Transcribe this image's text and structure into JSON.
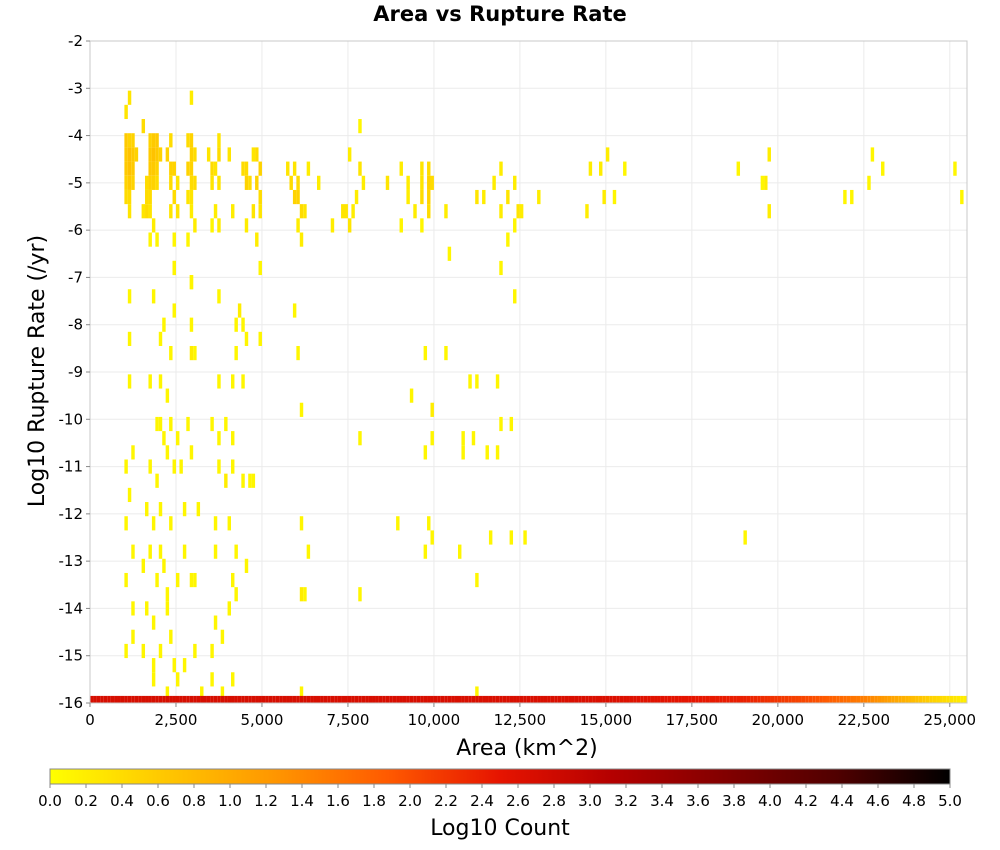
{
  "chart_data": {
    "type": "heatmap",
    "title": "Area vs Rupture Rate",
    "xlabel": "Area (km^2)",
    "ylabel": "Log10 Rupture Rate (/yr)",
    "xlim": [
      0,
      25500
    ],
    "ylim": [
      -16,
      -2
    ],
    "x_ticks": [
      0,
      2500,
      5000,
      7500,
      10000,
      12500,
      15000,
      17500,
      20000,
      22500,
      25000
    ],
    "x_tick_labels": [
      "0",
      "2,500",
      "5,000",
      "7,500",
      "10,000",
      "12,500",
      "15,000",
      "17,500",
      "20,000",
      "22,500",
      "25,000"
    ],
    "y_ticks": [
      -2,
      -3,
      -4,
      -5,
      -6,
      -7,
      -8,
      -9,
      -10,
      -11,
      -12,
      -13,
      -14,
      -15,
      -16
    ],
    "y_tick_labels": [
      "-2",
      "-3",
      "-4",
      "-5",
      "-6",
      "-7",
      "-8",
      "-9",
      "-10",
      "-11",
      "-12",
      "-13",
      "-14",
      "-15",
      "-16"
    ],
    "grid": true,
    "cell_width_km2": 100,
    "cell_height_log": 0.3,
    "colorbar": {
      "label": "Log10 Count",
      "range": [
        0.0,
        5.0
      ],
      "tick_labels": [
        "0.0",
        "0.2",
        "0.4",
        "0.6",
        "0.8",
        "1.0",
        "1.2",
        "1.4",
        "1.6",
        "1.8",
        "2.0",
        "2.2",
        "2.4",
        "2.6",
        "2.8",
        "3.0",
        "3.2",
        "3.4",
        "3.6",
        "3.8",
        "4.0",
        "4.2",
        "4.4",
        "4.6",
        "4.8",
        "5.0"
      ],
      "colors": [
        "#ffff00",
        "#ffc800",
        "#ff9600",
        "#ff5a00",
        "#e61400",
        "#b40000",
        "#820000",
        "#500000",
        "#000000"
      ],
      "placement": "bottom"
    },
    "bottom_row": {
      "y": -16,
      "x_start": 50,
      "x_end": 25450,
      "step": 100,
      "log_count_profile": [
        [
          0,
          2.7
        ],
        [
          5000,
          2.7
        ],
        [
          15000,
          2.65
        ],
        [
          19000,
          2.4
        ],
        [
          21000,
          2.0
        ],
        [
          22500,
          1.5
        ],
        [
          23500,
          1.0
        ],
        [
          24500,
          0.5
        ],
        [
          25400,
          0.2
        ]
      ]
    },
    "cells": [
      [
        1050,
        -3.5,
        0.3
      ],
      [
        1150,
        -3.2,
        0.3
      ],
      [
        1050,
        -4.1,
        0.6
      ],
      [
        1150,
        -4.1,
        0.5
      ],
      [
        1250,
        -4.1,
        0.5
      ],
      [
        1050,
        -4.4,
        0.6
      ],
      [
        1150,
        -4.4,
        0.7
      ],
      [
        1250,
        -4.4,
        0.6
      ],
      [
        1350,
        -4.4,
        0.5
      ],
      [
        1050,
        -4.7,
        0.6
      ],
      [
        1150,
        -4.7,
        0.7
      ],
      [
        1250,
        -4.7,
        0.6
      ],
      [
        1050,
        -5.0,
        0.5
      ],
      [
        1150,
        -5.0,
        0.6
      ],
      [
        1250,
        -5.0,
        0.5
      ],
      [
        1050,
        -5.3,
        0.4
      ],
      [
        1150,
        -5.3,
        0.4
      ],
      [
        1150,
        -5.6,
        0.3
      ],
      [
        1550,
        -3.8,
        0.4
      ],
      [
        1750,
        -4.1,
        0.5
      ],
      [
        1850,
        -4.1,
        0.6
      ],
      [
        1950,
        -4.1,
        0.6
      ],
      [
        1750,
        -4.4,
        0.6
      ],
      [
        1850,
        -4.4,
        0.7
      ],
      [
        1950,
        -4.4,
        0.6
      ],
      [
        2050,
        -4.4,
        0.5
      ],
      [
        1750,
        -4.7,
        0.6
      ],
      [
        1850,
        -4.7,
        0.6
      ],
      [
        1950,
        -4.7,
        0.5
      ],
      [
        1650,
        -5.0,
        0.4
      ],
      [
        1750,
        -5.0,
        0.5
      ],
      [
        1850,
        -5.0,
        0.5
      ],
      [
        1950,
        -5.0,
        0.4
      ],
      [
        1650,
        -5.3,
        0.4
      ],
      [
        1750,
        -5.3,
        0.4
      ],
      [
        1550,
        -5.6,
        0.3
      ],
      [
        1650,
        -5.6,
        0.4
      ],
      [
        1750,
        -5.6,
        0.3
      ],
      [
        1850,
        -5.9,
        0.2
      ],
      [
        1750,
        -6.2,
        0.1
      ],
      [
        1950,
        -6.2,
        0.1
      ],
      [
        2250,
        -4.4,
        0.5
      ],
      [
        2350,
        -4.1,
        0.4
      ],
      [
        2350,
        -4.7,
        0.5
      ],
      [
        2450,
        -4.7,
        0.5
      ],
      [
        2350,
        -5.0,
        0.4
      ],
      [
        2550,
        -5.0,
        0.3
      ],
      [
        2450,
        -5.3,
        0.4
      ],
      [
        2350,
        -5.6,
        0.3
      ],
      [
        2550,
        -5.6,
        0.3
      ],
      [
        2450,
        -6.2,
        0.1
      ],
      [
        2450,
        -6.8,
        0.2
      ],
      [
        2950,
        -3.2,
        0.2
      ],
      [
        2850,
        -4.1,
        0.4
      ],
      [
        2950,
        -4.1,
        0.5
      ],
      [
        2950,
        -4.4,
        0.5
      ],
      [
        3050,
        -4.4,
        0.4
      ],
      [
        2850,
        -4.7,
        0.5
      ],
      [
        2950,
        -4.7,
        0.5
      ],
      [
        2950,
        -5.0,
        0.4
      ],
      [
        3050,
        -5.0,
        0.4
      ],
      [
        2850,
        -5.3,
        0.3
      ],
      [
        2950,
        -5.3,
        0.3
      ],
      [
        2950,
        -5.6,
        0.2
      ],
      [
        3050,
        -5.9,
        0.2
      ],
      [
        2850,
        -6.2,
        0.1
      ],
      [
        2950,
        -7.1,
        0.1
      ],
      [
        3450,
        -4.4,
        0.3
      ],
      [
        3550,
        -4.7,
        0.4
      ],
      [
        3550,
        -5.0,
        0.3
      ],
      [
        3750,
        -4.1,
        0.3
      ],
      [
        3750,
        -4.4,
        0.4
      ],
      [
        3650,
        -4.7,
        0.3
      ],
      [
        3750,
        -5.0,
        0.3
      ],
      [
        3650,
        -5.6,
        0.2
      ],
      [
        3550,
        -5.9,
        0.1
      ],
      [
        3750,
        -5.9,
        0.2
      ],
      [
        4050,
        -4.4,
        0.3
      ],
      [
        4150,
        -5.6,
        0.2
      ],
      [
        4450,
        -4.7,
        0.4
      ],
      [
        4550,
        -4.7,
        0.4
      ],
      [
        4550,
        -5.0,
        0.5
      ],
      [
        4650,
        -5.0,
        0.4
      ],
      [
        4750,
        -4.4,
        0.3
      ],
      [
        4850,
        -4.4,
        0.4
      ],
      [
        4850,
        -5.0,
        0.5
      ],
      [
        4950,
        -4.7,
        0.5
      ],
      [
        4950,
        -5.3,
        0.4
      ],
      [
        4750,
        -5.6,
        0.3
      ],
      [
        4950,
        -5.6,
        0.3
      ],
      [
        4550,
        -5.9,
        0.2
      ],
      [
        4850,
        -6.2,
        0.2
      ],
      [
        4950,
        -6.8,
        0.1
      ],
      [
        5750,
        -4.7,
        0.3
      ],
      [
        5950,
        -4.7,
        0.3
      ],
      [
        5850,
        -5.0,
        0.4
      ],
      [
        6050,
        -5.0,
        0.4
      ],
      [
        5950,
        -5.3,
        0.5
      ],
      [
        6050,
        -5.3,
        0.5
      ],
      [
        6150,
        -5.6,
        0.4
      ],
      [
        6250,
        -5.6,
        0.3
      ],
      [
        6050,
        -5.9,
        0.2
      ],
      [
        6150,
        -6.2,
        0.2
      ],
      [
        6350,
        -4.7,
        0.2
      ],
      [
        6650,
        -5.0,
        0.2
      ],
      [
        7050,
        -5.9,
        0.2
      ],
      [
        7350,
        -5.6,
        0.3
      ],
      [
        7450,
        -5.6,
        0.3
      ],
      [
        7550,
        -5.9,
        0.3
      ],
      [
        7650,
        -5.6,
        0.2
      ],
      [
        7750,
        -5.3,
        0.2
      ],
      [
        7550,
        -4.4,
        0.2
      ],
      [
        7850,
        -4.7,
        0.3
      ],
      [
        7950,
        -5.0,
        0.2
      ],
      [
        7850,
        -3.8,
        0.1
      ],
      [
        8650,
        -5.0,
        0.3
      ],
      [
        9050,
        -4.7,
        0.2
      ],
      [
        9250,
        -5.0,
        0.2
      ],
      [
        9250,
        -5.3,
        0.2
      ],
      [
        9450,
        -5.6,
        0.2
      ],
      [
        9650,
        -4.7,
        0.3
      ],
      [
        9650,
        -5.0,
        0.3
      ],
      [
        9650,
        -5.3,
        0.4
      ],
      [
        9850,
        -4.7,
        0.4
      ],
      [
        9850,
        -5.0,
        0.5
      ],
      [
        9850,
        -5.3,
        0.5
      ],
      [
        9850,
        -5.6,
        0.4
      ],
      [
        9950,
        -5.0,
        0.4
      ],
      [
        10350,
        -5.6,
        0.2
      ],
      [
        11250,
        -5.3,
        0.3
      ],
      [
        11450,
        -5.3,
        0.2
      ],
      [
        11750,
        -5.0,
        0.2
      ],
      [
        11950,
        -4.7,
        0.2
      ],
      [
        11950,
        -5.6,
        0.2
      ],
      [
        12150,
        -5.3,
        0.3
      ],
      [
        12350,
        -5.0,
        0.2
      ],
      [
        12450,
        -5.6,
        0.3
      ],
      [
        12550,
        -5.6,
        0.2
      ],
      [
        12350,
        -5.9,
        0.1
      ],
      [
        13050,
        -5.3,
        0.2
      ],
      [
        14450,
        -5.6,
        0.2
      ],
      [
        14550,
        -4.7,
        0.2
      ],
      [
        14950,
        -5.3,
        0.2
      ],
      [
        14850,
        -4.7,
        0.2
      ],
      [
        15050,
        -4.4,
        0.2
      ],
      [
        15250,
        -5.3,
        0.1
      ],
      [
        15550,
        -4.7,
        0.1
      ],
      [
        18850,
        -4.7,
        0.1
      ],
      [
        19550,
        -5.0,
        0.1
      ],
      [
        19750,
        -4.4,
        0.2
      ],
      [
        19650,
        -5.0,
        0.2
      ],
      [
        19750,
        -5.6,
        0.2
      ],
      [
        21950,
        -5.3,
        0.1
      ],
      [
        22150,
        -5.3,
        0.1
      ],
      [
        22650,
        -5.0,
        0.1
      ],
      [
        22750,
        -4.4,
        0.1
      ],
      [
        23050,
        -4.7,
        0.1
      ],
      [
        25150,
        -4.7,
        0.1
      ],
      [
        25350,
        -5.3,
        0.1
      ],
      [
        9050,
        -5.9,
        0.1
      ],
      [
        9650,
        -5.9,
        0.1
      ],
      [
        10450,
        -6.5,
        0.1
      ],
      [
        11950,
        -6.8,
        0.1
      ],
      [
        12150,
        -6.2,
        0.1
      ],
      [
        12350,
        -7.4,
        0.1
      ],
      [
        1150,
        -7.4,
        0.1
      ],
      [
        1850,
        -7.4,
        0.1
      ],
      [
        2450,
        -6.8,
        0.1
      ],
      [
        2950,
        -7.1,
        0.1
      ],
      [
        3750,
        -7.4,
        0.1
      ],
      [
        1150,
        -8.3,
        0.1
      ],
      [
        2050,
        -8.3,
        0.1
      ],
      [
        2150,
        -8.0,
        0.1
      ],
      [
        2450,
        -7.7,
        0.1
      ],
      [
        2350,
        -8.6,
        0.1
      ],
      [
        2950,
        -8.0,
        0.1
      ],
      [
        2950,
        -8.6,
        0.2
      ],
      [
        3050,
        -8.6,
        0.1
      ],
      [
        4250,
        -8.0,
        0.1
      ],
      [
        4350,
        -7.7,
        0.2
      ],
      [
        4450,
        -8.0,
        0.1
      ],
      [
        4250,
        -8.6,
        0.1
      ],
      [
        4550,
        -8.3,
        0.1
      ],
      [
        4950,
        -8.3,
        0.1
      ],
      [
        5950,
        -7.7,
        0.1
      ],
      [
        6050,
        -8.6,
        0.1
      ],
      [
        9750,
        -8.6,
        0.1
      ],
      [
        10350,
        -8.6,
        0.1
      ],
      [
        1150,
        -9.2,
        0.1
      ],
      [
        1750,
        -9.2,
        0.1
      ],
      [
        2050,
        -9.2,
        0.1
      ],
      [
        2250,
        -9.5,
        0.1
      ],
      [
        3750,
        -9.2,
        0.1
      ],
      [
        4150,
        -9.2,
        0.1
      ],
      [
        4450,
        -9.2,
        0.1
      ],
      [
        6150,
        -9.8,
        0.1
      ],
      [
        9350,
        -9.5,
        0.1
      ],
      [
        9950,
        -9.8,
        0.2
      ],
      [
        11050,
        -9.2,
        0.1
      ],
      [
        11250,
        -9.2,
        0.1
      ],
      [
        11850,
        -9.2,
        0.1
      ],
      [
        1950,
        -10.1,
        0.1
      ],
      [
        2050,
        -10.1,
        0.1
      ],
      [
        2150,
        -10.4,
        0.1
      ],
      [
        2350,
        -10.1,
        0.1
      ],
      [
        2550,
        -10.4,
        0.1
      ],
      [
        2850,
        -10.1,
        0.1
      ],
      [
        3550,
        -10.1,
        0.1
      ],
      [
        3750,
        -10.4,
        0.1
      ],
      [
        3950,
        -10.1,
        0.1
      ],
      [
        4150,
        -10.4,
        0.1
      ],
      [
        7850,
        -10.4,
        0.1
      ],
      [
        9950,
        -10.4,
        0.1
      ],
      [
        10850,
        -10.4,
        0.1
      ],
      [
        11150,
        -10.4,
        0.1
      ],
      [
        11950,
        -10.1,
        0.1
      ],
      [
        12250,
        -10.1,
        0.1
      ],
      [
        1050,
        -11.0,
        0.1
      ],
      [
        1250,
        -10.7,
        0.1
      ],
      [
        1750,
        -11.0,
        0.1
      ],
      [
        1950,
        -11.3,
        0.1
      ],
      [
        2250,
        -10.7,
        0.1
      ],
      [
        2450,
        -11.0,
        0.1
      ],
      [
        2650,
        -11.0,
        0.1
      ],
      [
        2950,
        -10.7,
        0.1
      ],
      [
        3750,
        -11.0,
        0.1
      ],
      [
        3950,
        -11.3,
        0.2
      ],
      [
        4150,
        -11.0,
        0.1
      ],
      [
        4450,
        -11.3,
        0.1
      ],
      [
        4650,
        -11.3,
        0.1
      ],
      [
        4750,
        -11.3,
        0.1
      ],
      [
        9750,
        -10.7,
        0.1
      ],
      [
        10850,
        -10.7,
        0.1
      ],
      [
        11550,
        -10.7,
        0.1
      ],
      [
        11850,
        -10.7,
        0.1
      ],
      [
        11650,
        -12.5,
        0.1
      ],
      [
        12250,
        -12.5,
        0.1
      ],
      [
        12650,
        -12.5,
        0.1
      ],
      [
        19050,
        -12.5,
        0.1
      ],
      [
        1050,
        -12.2,
        0.1
      ],
      [
        1150,
        -11.6,
        0.1
      ],
      [
        1650,
        -11.9,
        0.1
      ],
      [
        1850,
        -12.2,
        0.1
      ],
      [
        2050,
        -11.9,
        0.1
      ],
      [
        2350,
        -12.2,
        0.1
      ],
      [
        2750,
        -11.9,
        0.1
      ],
      [
        3150,
        -11.9,
        0.1
      ],
      [
        3650,
        -12.2,
        0.1
      ],
      [
        4050,
        -12.2,
        0.1
      ],
      [
        1250,
        -12.8,
        0.1
      ],
      [
        1750,
        -12.8,
        0.1
      ],
      [
        2050,
        -12.8,
        0.1
      ],
      [
        2150,
        -13.1,
        0.1
      ],
      [
        2750,
        -12.8,
        0.1
      ],
      [
        3650,
        -12.8,
        0.1
      ],
      [
        4250,
        -12.8,
        0.1
      ],
      [
        6150,
        -12.2,
        0.1
      ],
      [
        6350,
        -12.8,
        0.1
      ],
      [
        8950,
        -12.2,
        0.1
      ],
      [
        9850,
        -12.2,
        0.1
      ],
      [
        9950,
        -12.5,
        0.1
      ],
      [
        9750,
        -12.8,
        0.1
      ],
      [
        10750,
        -12.8,
        0.1
      ],
      [
        1050,
        -13.4,
        0.1
      ],
      [
        1550,
        -13.1,
        0.1
      ],
      [
        1950,
        -13.4,
        0.1
      ],
      [
        2250,
        -13.7,
        0.1
      ],
      [
        2550,
        -13.4,
        0.1
      ],
      [
        2950,
        -13.4,
        0.1
      ],
      [
        3050,
        -13.4,
        0.1
      ],
      [
        4150,
        -13.4,
        0.1
      ],
      [
        4550,
        -13.1,
        0.1
      ],
      [
        6150,
        -13.7,
        0.2
      ],
      [
        6250,
        -13.7,
        0.1
      ],
      [
        7850,
        -13.7,
        0.1
      ],
      [
        11250,
        -13.4,
        0.1
      ],
      [
        1250,
        -14.0,
        0.1
      ],
      [
        1650,
        -14.0,
        0.1
      ],
      [
        1850,
        -14.3,
        0.1
      ],
      [
        2250,
        -14.0,
        0.1
      ],
      [
        3650,
        -14.3,
        0.1
      ],
      [
        4050,
        -14.0,
        0.1
      ],
      [
        4250,
        -13.7,
        0.1
      ],
      [
        1050,
        -14.9,
        0.1
      ],
      [
        1250,
        -14.6,
        0.1
      ],
      [
        1550,
        -14.9,
        0.1
      ],
      [
        1850,
        -15.2,
        0.1
      ],
      [
        2050,
        -14.9,
        0.1
      ],
      [
        2350,
        -14.6,
        0.1
      ],
      [
        2450,
        -15.2,
        0.1
      ],
      [
        2750,
        -15.2,
        0.1
      ],
      [
        3050,
        -14.9,
        0.1
      ],
      [
        3550,
        -14.9,
        0.1
      ],
      [
        3850,
        -14.6,
        0.1
      ],
      [
        1850,
        -15.5,
        0.1
      ],
      [
        2250,
        -15.8,
        0.1
      ],
      [
        2550,
        -15.5,
        0.1
      ],
      [
        3250,
        -15.8,
        0.1
      ],
      [
        3550,
        -15.5,
        0.1
      ],
      [
        3850,
        -15.8,
        0.1
      ],
      [
        4150,
        -15.5,
        0.1
      ],
      [
        6150,
        -15.8,
        0.1
      ],
      [
        11250,
        -15.8,
        0.1
      ]
    ]
  }
}
